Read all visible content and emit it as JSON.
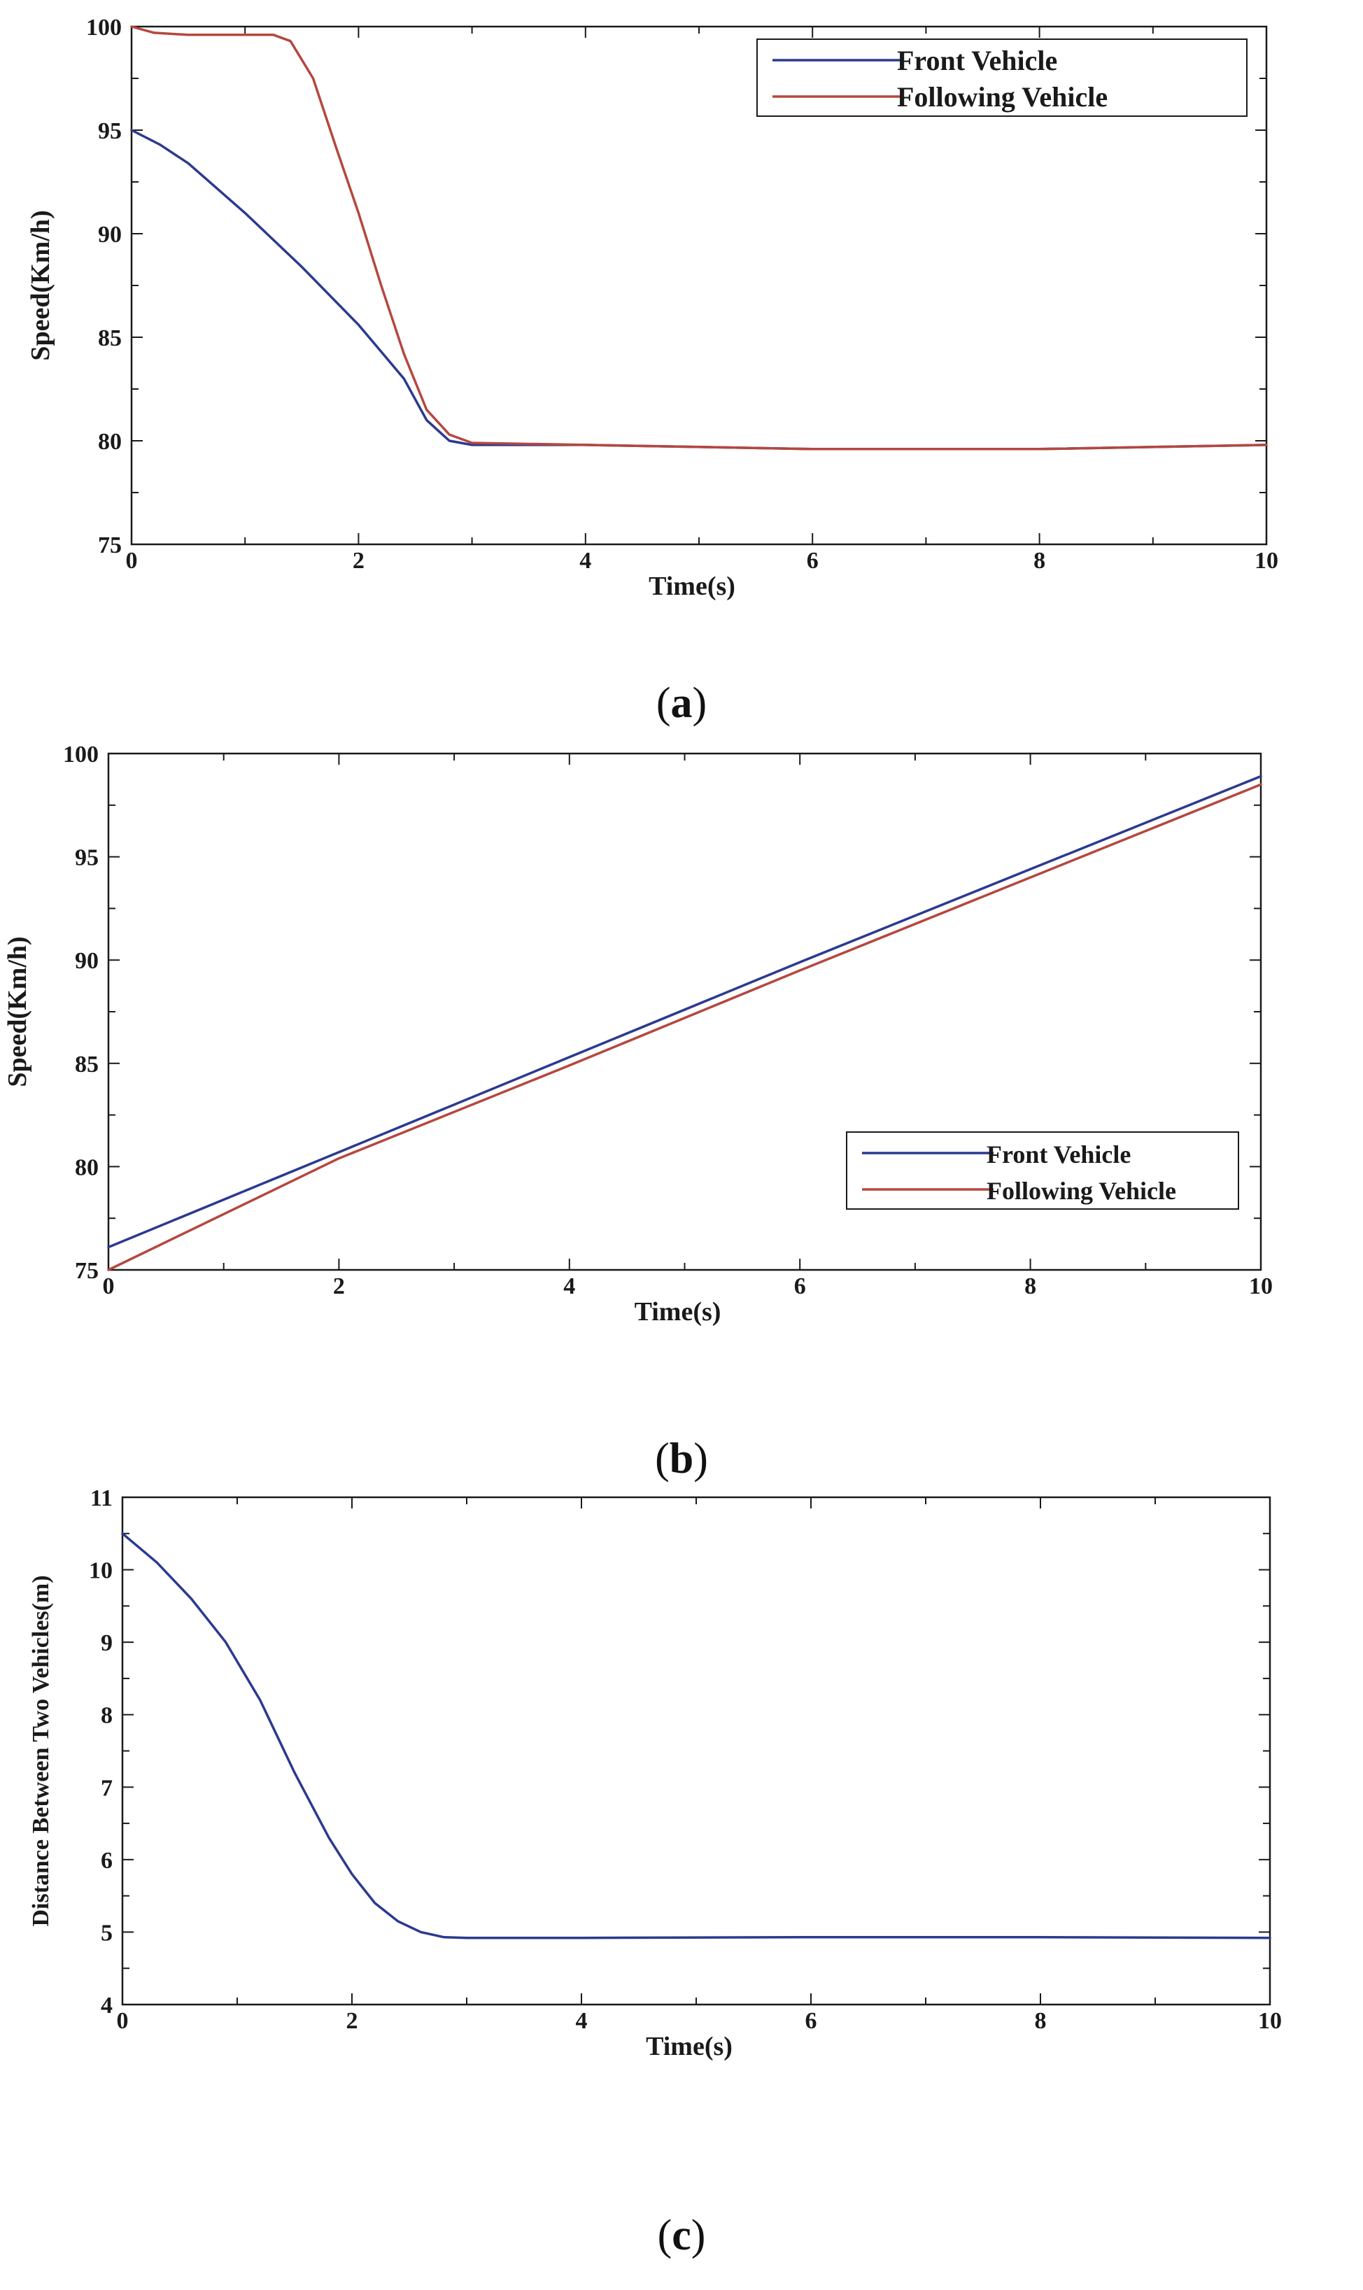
{
  "colors": {
    "front": "#2b3a8f",
    "following": "#b5473f",
    "axis": "#1a1a1a"
  },
  "chart_data": [
    {
      "type": "line",
      "caption_letter": "a",
      "xlabel": "Time(s)",
      "ylabel": "Speed(Km/h)",
      "xlim": [
        0,
        10
      ],
      "ylim": [
        75,
        100
      ],
      "xticks": [
        0,
        2,
        4,
        6,
        8,
        10
      ],
      "yticks": [
        75,
        80,
        85,
        90,
        95,
        100
      ],
      "grid": false,
      "legend": "top-right",
      "series": [
        {
          "name": "Front Vehicle",
          "color_key": "front",
          "points": [
            [
              0,
              95
            ],
            [
              0.25,
              94.3
            ],
            [
              0.5,
              93.4
            ],
            [
              1.0,
              91.0
            ],
            [
              1.5,
              88.4
            ],
            [
              2.0,
              85.6
            ],
            [
              2.4,
              83.0
            ],
            [
              2.6,
              81.0
            ],
            [
              2.8,
              80.0
            ],
            [
              3.0,
              79.8
            ],
            [
              4,
              79.8
            ],
            [
              6,
              79.6
            ],
            [
              8,
              79.6
            ],
            [
              10,
              79.8
            ]
          ]
        },
        {
          "name": "Following Vehicle",
          "color_key": "following",
          "points": [
            [
              0,
              100
            ],
            [
              0.2,
              99.7
            ],
            [
              0.5,
              99.6
            ],
            [
              1.25,
              99.6
            ],
            [
              1.4,
              99.3
            ],
            [
              1.6,
              97.5
            ],
            [
              1.8,
              94.2
            ],
            [
              2.0,
              91.0
            ],
            [
              2.2,
              87.5
            ],
            [
              2.4,
              84.2
            ],
            [
              2.6,
              81.5
            ],
            [
              2.8,
              80.3
            ],
            [
              3.0,
              79.9
            ],
            [
              4,
              79.8
            ],
            [
              6,
              79.6
            ],
            [
              8,
              79.6
            ],
            [
              10,
              79.8
            ]
          ]
        }
      ]
    },
    {
      "type": "line",
      "caption_letter": "b",
      "xlabel": "Time(s)",
      "ylabel": "Speed(Km/h)",
      "xlim": [
        0,
        10
      ],
      "ylim": [
        75,
        100
      ],
      "xticks": [
        0,
        2,
        4,
        6,
        8,
        10
      ],
      "yticks": [
        75,
        80,
        85,
        90,
        95,
        100
      ],
      "grid": false,
      "legend": "bottom-right",
      "series": [
        {
          "name": "Front Vehicle",
          "color_key": "front",
          "points": [
            [
              0,
              76.1
            ],
            [
              2,
              80.7
            ],
            [
              4,
              85.3
            ],
            [
              6,
              89.9
            ],
            [
              8,
              94.4
            ],
            [
              10,
              98.9
            ]
          ]
        },
        {
          "name": "Following Vehicle",
          "color_key": "following",
          "points": [
            [
              0,
              75.0
            ],
            [
              2,
              80.4
            ],
            [
              4,
              84.9
            ],
            [
              6,
              89.5
            ],
            [
              8,
              94.0
            ],
            [
              10,
              98.5
            ]
          ]
        }
      ]
    },
    {
      "type": "line",
      "caption_letter": "c",
      "xlabel": "Time(s)",
      "ylabel": "Distance Between Two Vehicles(m)",
      "xlim": [
        0,
        10
      ],
      "ylim": [
        4,
        11
      ],
      "xticks": [
        0,
        2,
        4,
        6,
        8,
        10
      ],
      "yticks": [
        4,
        5,
        6,
        7,
        8,
        9,
        10,
        11
      ],
      "grid": false,
      "legend": "none",
      "series": [
        {
          "color_key": "front",
          "points": [
            [
              0,
              10.5
            ],
            [
              0.3,
              10.1
            ],
            [
              0.6,
              9.6
            ],
            [
              0.9,
              9.0
            ],
            [
              1.2,
              8.2
            ],
            [
              1.5,
              7.2
            ],
            [
              1.8,
              6.3
            ],
            [
              2.0,
              5.8
            ],
            [
              2.2,
              5.4
            ],
            [
              2.4,
              5.15
            ],
            [
              2.6,
              5.0
            ],
            [
              2.8,
              4.93
            ],
            [
              3.0,
              4.92
            ],
            [
              4,
              4.92
            ],
            [
              6,
              4.93
            ],
            [
              8,
              4.93
            ],
            [
              10,
              4.92
            ]
          ]
        }
      ]
    }
  ]
}
